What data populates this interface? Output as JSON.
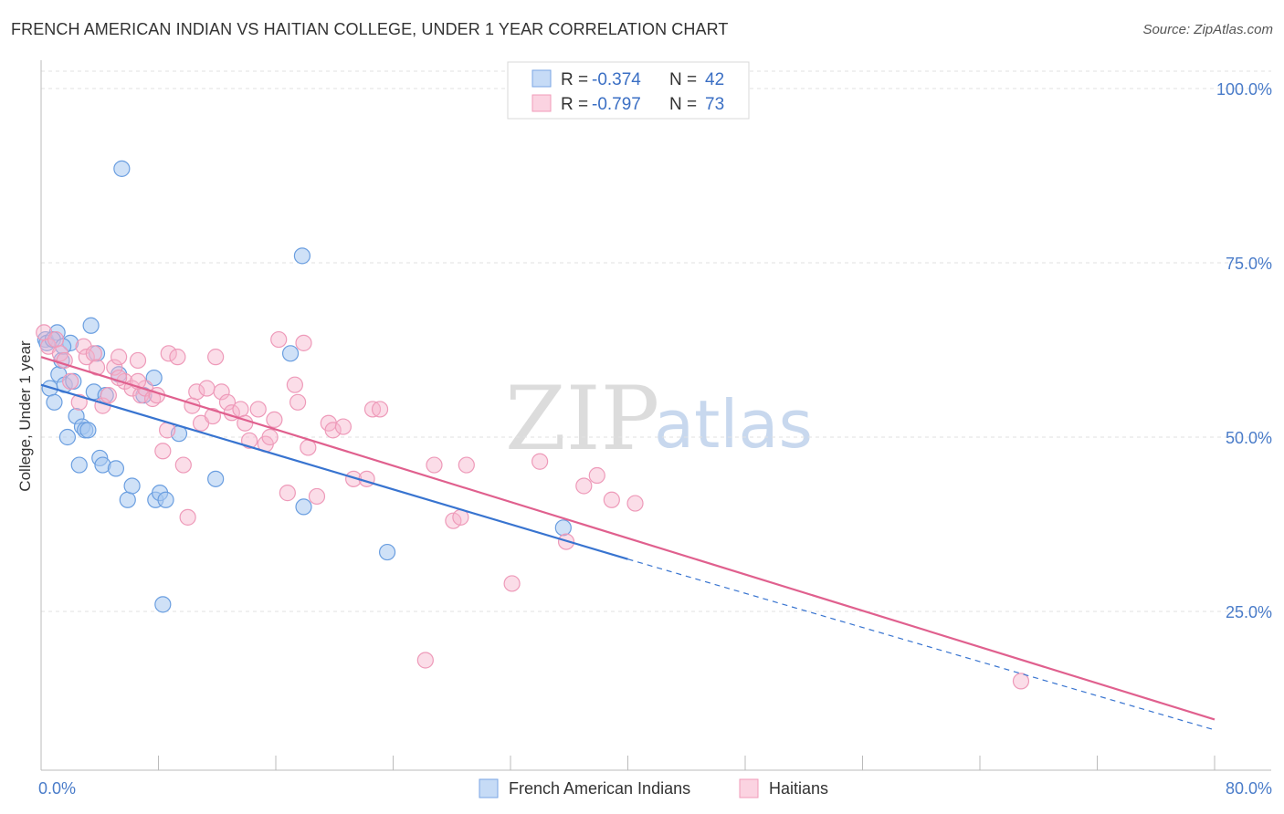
{
  "title": "FRENCH AMERICAN INDIAN VS HAITIAN COLLEGE, UNDER 1 YEAR CORRELATION CHART",
  "source": "Source: ZipAtlas.com",
  "watermark": {
    "zip": "ZIP",
    "atlas": "atlas"
  },
  "legend_top": [
    {
      "r_label": "R = ",
      "r_value": "-0.374",
      "n_label": "N = ",
      "n_value": "42"
    },
    {
      "r_label": "R = ",
      "r_value": "-0.797",
      "n_label": "N = ",
      "n_value": "73"
    }
  ],
  "chart_data": {
    "type": "scatter",
    "title": "FRENCH AMERICAN INDIAN VS HAITIAN COLLEGE, UNDER 1 YEAR CORRELATION CHART",
    "xlabel": "",
    "ylabel": "College, Under 1 year",
    "xlim": [
      0,
      80
    ],
    "ylim": [
      0,
      105
    ],
    "x_tick_labels": [
      "0.0%",
      "80.0%"
    ],
    "y_tick_labels": [
      "100.0%",
      "75.0%",
      "50.0%",
      "25.0%"
    ],
    "y_tick_values": [
      100,
      75,
      50,
      25
    ],
    "colors": {
      "French American Indians": "#6fa0e0",
      "Haitians": "#f08cb0",
      "blue_line": "#3874d0",
      "pink_line": "#e0608e"
    },
    "series": [
      {
        "name": "French American Indians",
        "points": [
          [
            0.3,
            64
          ],
          [
            0.4,
            63.5
          ],
          [
            0.6,
            57
          ],
          [
            0.9,
            55
          ],
          [
            1.1,
            65
          ],
          [
            1.2,
            59
          ],
          [
            1.4,
            61
          ],
          [
            1.6,
            57.5
          ],
          [
            1.8,
            50
          ],
          [
            2.0,
            63.5
          ],
          [
            2.2,
            58
          ],
          [
            2.4,
            53
          ],
          [
            2.6,
            46
          ],
          [
            2.8,
            51.5
          ],
          [
            3.0,
            51
          ],
          [
            3.2,
            51
          ],
          [
            3.4,
            66
          ],
          [
            3.6,
            56.5
          ],
          [
            3.8,
            62
          ],
          [
            4.0,
            47
          ],
          [
            4.2,
            46
          ],
          [
            4.4,
            56
          ],
          [
            5.1,
            45.5
          ],
          [
            5.3,
            59
          ],
          [
            5.5,
            88.5
          ],
          [
            5.9,
            41
          ],
          [
            6.2,
            43
          ],
          [
            7.0,
            56
          ],
          [
            7.7,
            58.5
          ],
          [
            7.8,
            41
          ],
          [
            8.1,
            42
          ],
          [
            8.3,
            26
          ],
          [
            8.5,
            41
          ],
          [
            9.4,
            50.5
          ],
          [
            11.9,
            44
          ],
          [
            17.0,
            62
          ],
          [
            17.8,
            76
          ],
          [
            17.9,
            40
          ],
          [
            23.6,
            33.5
          ],
          [
            35.6,
            37
          ],
          [
            0.8,
            64
          ],
          [
            1.5,
            63
          ]
        ],
        "trend": {
          "x0": 0,
          "y0": 57.5,
          "x1": 40,
          "y1": 32.5,
          "dashed_to_x": 80,
          "dashed_to_y": 8
        }
      },
      {
        "name": "Haitians",
        "points": [
          [
            0.2,
            65
          ],
          [
            0.5,
            63
          ],
          [
            1.0,
            64
          ],
          [
            1.3,
            62
          ],
          [
            1.6,
            61
          ],
          [
            2.0,
            58
          ],
          [
            2.6,
            55
          ],
          [
            2.9,
            63
          ],
          [
            3.1,
            61.5
          ],
          [
            3.6,
            62
          ],
          [
            3.8,
            60
          ],
          [
            4.2,
            54.5
          ],
          [
            4.6,
            56
          ],
          [
            5.0,
            60
          ],
          [
            5.3,
            61.5
          ],
          [
            5.7,
            58
          ],
          [
            6.2,
            57
          ],
          [
            6.6,
            61
          ],
          [
            6.8,
            56
          ],
          [
            7.1,
            57
          ],
          [
            7.6,
            55.5
          ],
          [
            7.9,
            56
          ],
          [
            8.3,
            48
          ],
          [
            8.6,
            51
          ],
          [
            8.7,
            62
          ],
          [
            9.3,
            61.5
          ],
          [
            9.7,
            46
          ],
          [
            10.0,
            38.5
          ],
          [
            10.3,
            54.5
          ],
          [
            10.6,
            56.5
          ],
          [
            10.9,
            52
          ],
          [
            11.3,
            57
          ],
          [
            11.7,
            53
          ],
          [
            11.9,
            61.5
          ],
          [
            12.3,
            56.5
          ],
          [
            12.7,
            55
          ],
          [
            13.0,
            53.5
          ],
          [
            13.6,
            54
          ],
          [
            13.9,
            52
          ],
          [
            14.2,
            49.5
          ],
          [
            14.8,
            54
          ],
          [
            15.3,
            49
          ],
          [
            15.6,
            50
          ],
          [
            15.9,
            52.5
          ],
          [
            16.2,
            64
          ],
          [
            16.8,
            42
          ],
          [
            17.3,
            57.5
          ],
          [
            17.5,
            55
          ],
          [
            17.9,
            63.5
          ],
          [
            18.2,
            48.5
          ],
          [
            18.8,
            41.5
          ],
          [
            19.6,
            52
          ],
          [
            19.9,
            51
          ],
          [
            20.6,
            51.5
          ],
          [
            21.3,
            44
          ],
          [
            22.2,
            44
          ],
          [
            22.6,
            54
          ],
          [
            23.1,
            54
          ],
          [
            26.2,
            18
          ],
          [
            26.8,
            46
          ],
          [
            28.1,
            38
          ],
          [
            28.6,
            38.5
          ],
          [
            29.0,
            46
          ],
          [
            32.1,
            29
          ],
          [
            34.0,
            46.5
          ],
          [
            35.8,
            35
          ],
          [
            37.0,
            43
          ],
          [
            37.9,
            44.5
          ],
          [
            38.9,
            41
          ],
          [
            40.5,
            40.5
          ],
          [
            66.8,
            15
          ],
          [
            6.6,
            58
          ],
          [
            5.3,
            58.5
          ]
        ],
        "trend": {
          "x0": 0,
          "y0": 61.5,
          "x1": 80,
          "y1": 9.5
        }
      }
    ]
  },
  "legend_bottom": [
    {
      "label": "French American Indians"
    },
    {
      "label": "Haitians"
    }
  ]
}
